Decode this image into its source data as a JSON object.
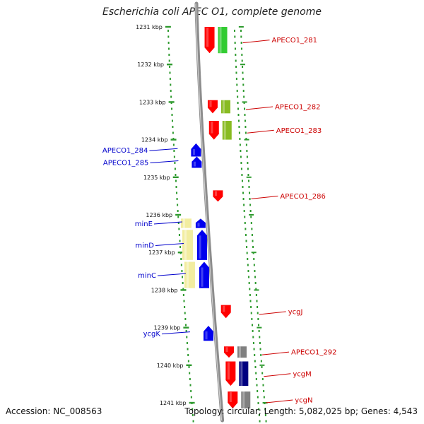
{
  "title": "Escherichia coli APEC O1, complete genome",
  "footer": {
    "accession": "Accession: NC_008563",
    "summary": "Topology: circular; Length: 5,082,025 bp; Genes: 4,543"
  },
  "colors": {
    "tick": "#2e9a2e",
    "backbone": "#8c8c8c",
    "label_forward": "#cc0000",
    "label_reverse": "#0000cc"
  },
  "ticks": [
    {
      "kbp": 1231,
      "label": "1231 kbp"
    },
    {
      "kbp": 1232,
      "label": "1232 kbp"
    },
    {
      "kbp": 1233,
      "label": "1233 kbp"
    },
    {
      "kbp": 1234,
      "label": "1234 kbp"
    },
    {
      "kbp": 1235,
      "label": "1235 kbp"
    },
    {
      "kbp": 1236,
      "label": "1236 kbp"
    },
    {
      "kbp": 1237,
      "label": "1237 kbp"
    },
    {
      "kbp": 1238,
      "label": "1238 kbp"
    },
    {
      "kbp": 1239,
      "label": "1239 kbp"
    },
    {
      "kbp": 1240,
      "label": "1240 kbp"
    },
    {
      "kbp": 1241,
      "label": "1241 kbp"
    }
  ],
  "forward_genes": [
    {
      "name": "APECO1_281",
      "start_kbp": 1231.0,
      "end_kbp": 1231.7,
      "cog_color": "#33cc33"
    },
    {
      "name": "APECO1_282",
      "start_kbp": 1232.95,
      "end_kbp": 1233.3,
      "cog_color": "#88bb22"
    },
    {
      "name": "APECO1_283",
      "start_kbp": 1233.5,
      "end_kbp": 1234.0,
      "cog_color": "#88bb22"
    },
    {
      "name": "APECO1_286",
      "start_kbp": 1235.35,
      "end_kbp": 1235.65,
      "cog_color": null
    },
    {
      "name": "ycgJ",
      "start_kbp": 1238.4,
      "end_kbp": 1238.75,
      "cog_color": null
    },
    {
      "name": "APECO1_292",
      "start_kbp": 1239.5,
      "end_kbp": 1239.8,
      "cog_color": "#808080"
    },
    {
      "name": "ycgM",
      "start_kbp": 1239.9,
      "end_kbp": 1240.55,
      "cog_color": "#000080"
    },
    {
      "name": "ycgN",
      "start_kbp": 1240.7,
      "end_kbp": 1241.15,
      "cog_color": "#808080"
    }
  ],
  "reverse_genes": [
    {
      "name": "APECO1_284",
      "start_kbp": 1234.1,
      "end_kbp": 1234.45,
      "cog_color": null
    },
    {
      "name": "APECO1_285",
      "start_kbp": 1234.45,
      "end_kbp": 1234.75,
      "cog_color": null
    },
    {
      "name": "minE",
      "start_kbp": 1236.1,
      "end_kbp": 1236.35,
      "cog_color": "#f2eda0"
    },
    {
      "name": "minD",
      "start_kbp": 1236.4,
      "end_kbp": 1237.2,
      "cog_color": "#f2eda0"
    },
    {
      "name": "minC",
      "start_kbp": 1237.25,
      "end_kbp": 1237.95,
      "cog_color": "#f2eda0"
    },
    {
      "name": "ycgK",
      "start_kbp": 1238.95,
      "end_kbp": 1239.35,
      "cog_color": null
    }
  ]
}
